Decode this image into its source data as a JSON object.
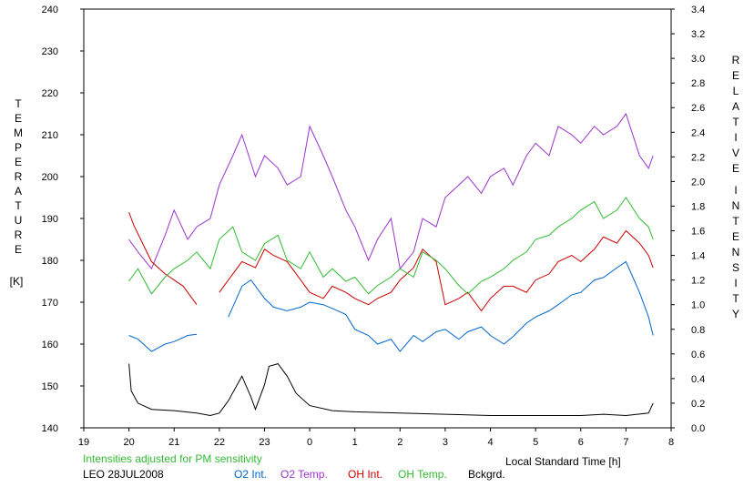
{
  "chart_data": {
    "type": "line",
    "xlabel": "Local Standard Time [h]",
    "x_ticks": [
      "19",
      "20",
      "21",
      "22",
      "23",
      "0",
      "1",
      "2",
      "3",
      "4",
      "5",
      "6",
      "7",
      "8"
    ],
    "xlim": [
      19,
      32
    ],
    "y_left": {
      "label_letters": [
        "T",
        "E",
        "M",
        "P",
        "E",
        "R",
        "A",
        "T",
        "U",
        "R",
        "E"
      ],
      "unit": "[K]",
      "ticks": [
        "140",
        "150",
        "160",
        "170",
        "180",
        "190",
        "200",
        "210",
        "220",
        "230",
        "240"
      ],
      "lim": [
        140,
        240
      ]
    },
    "y_right": {
      "label_word1": [
        "R",
        "E",
        "L",
        "A",
        "T",
        "I",
        "V",
        "E"
      ],
      "label_word2": [
        "I",
        "N",
        "T",
        "E",
        "N",
        "S",
        "I",
        "T",
        "Y"
      ],
      "ticks": [
        "0.0",
        "0.2",
        "0.4",
        "0.6",
        "0.8",
        "1.0",
        "1.2",
        "1.4",
        "1.6",
        "1.8",
        "2.0",
        "2.2",
        "2.4",
        "2.6",
        "2.8",
        "3.0",
        "3.2",
        "3.4"
      ],
      "lim": [
        0,
        3.4
      ]
    },
    "note": "Intensities adjusted for PM sensitivity",
    "station_date": "LEO 28JUL2008",
    "series": [
      {
        "name": "O2 Int.",
        "color": "#0066cc",
        "axis": "right",
        "x": [
          20.0,
          20.2,
          20.5,
          20.8,
          21.0,
          21.3,
          21.5,
          22.0,
          22.2,
          22.5,
          22.7,
          23.0,
          23.2,
          23.5,
          23.8,
          24.0,
          24.3,
          24.5,
          24.8,
          25.0,
          25.3,
          25.5,
          25.8,
          26.0,
          26.3,
          26.5,
          26.8,
          27.0,
          27.3,
          27.5,
          27.8,
          28.0,
          28.3,
          28.5,
          28.8,
          29.0,
          29.3,
          29.5,
          29.8,
          30.0,
          30.3,
          30.5,
          30.8,
          31.0,
          31.3,
          31.5,
          31.6
        ],
        "y": [
          0.75,
          0.72,
          0.62,
          0.68,
          0.7,
          0.75,
          0.76,
          null,
          0.9,
          1.15,
          1.2,
          1.05,
          0.98,
          0.95,
          0.98,
          1.02,
          1.0,
          0.97,
          0.92,
          0.8,
          0.75,
          0.68,
          0.72,
          0.62,
          0.75,
          0.7,
          0.78,
          0.8,
          0.72,
          0.78,
          0.82,
          0.75,
          0.68,
          0.74,
          0.85,
          0.9,
          0.95,
          1.0,
          1.08,
          1.1,
          1.2,
          1.22,
          1.3,
          1.35,
          1.1,
          0.9,
          0.75
        ]
      },
      {
        "name": "O2 Temp.",
        "color": "#9933cc",
        "axis": "left",
        "x": [
          20.0,
          20.2,
          20.5,
          20.8,
          21.0,
          21.3,
          21.5,
          21.8,
          22.0,
          22.3,
          22.5,
          22.8,
          23.0,
          23.3,
          23.5,
          23.8,
          24.0,
          24.3,
          24.5,
          24.8,
          25.0,
          25.3,
          25.5,
          25.8,
          26.0,
          26.3,
          26.5,
          26.8,
          27.0,
          27.3,
          27.5,
          27.8,
          28.0,
          28.3,
          28.5,
          28.8,
          29.0,
          29.3,
          29.5,
          29.8,
          30.0,
          30.3,
          30.5,
          30.8,
          31.0,
          31.3,
          31.5,
          31.6
        ],
        "y": [
          185,
          182,
          178,
          186,
          192,
          185,
          188,
          190,
          198,
          205,
          210,
          200,
          205,
          202,
          198,
          200,
          212,
          205,
          200,
          192,
          188,
          180,
          185,
          190,
          178,
          182,
          190,
          188,
          195,
          198,
          200,
          196,
          200,
          202,
          198,
          205,
          208,
          205,
          212,
          210,
          208,
          212,
          210,
          212,
          215,
          205,
          202,
          205
        ]
      },
      {
        "name": "OH Int.",
        "color": "#cc0000",
        "axis": "right",
        "x": [
          20.0,
          20.1,
          20.3,
          20.5,
          20.8,
          21.0,
          21.2,
          21.4,
          21.5,
          21.7,
          22.0,
          22.2,
          22.5,
          22.8,
          23.0,
          23.2,
          23.5,
          23.8,
          24.0,
          24.3,
          24.5,
          24.8,
          25.0,
          25.3,
          25.5,
          25.8,
          26.0,
          26.3,
          26.5,
          26.8,
          27.0,
          27.3,
          27.5,
          27.8,
          28.0,
          28.3,
          28.5,
          28.8,
          29.0,
          29.3,
          29.5,
          29.8,
          30.0,
          30.3,
          30.5,
          30.8,
          31.0,
          31.3,
          31.5,
          31.6
        ],
        "y": [
          1.75,
          1.65,
          1.5,
          1.35,
          1.25,
          1.2,
          1.15,
          1.05,
          1.0,
          null,
          1.1,
          1.2,
          1.35,
          1.3,
          1.45,
          1.4,
          1.35,
          1.2,
          1.1,
          1.05,
          1.15,
          1.1,
          1.05,
          1.0,
          1.05,
          1.1,
          1.2,
          1.3,
          1.45,
          1.35,
          1.0,
          1.05,
          1.1,
          0.95,
          1.05,
          1.15,
          1.15,
          1.1,
          1.2,
          1.25,
          1.35,
          1.4,
          1.35,
          1.45,
          1.55,
          1.5,
          1.6,
          1.5,
          1.4,
          1.3
        ]
      },
      {
        "name": "OH Temp.",
        "color": "#33bb33",
        "axis": "left",
        "x": [
          20.0,
          20.2,
          20.5,
          20.8,
          21.0,
          21.3,
          21.5,
          21.8,
          22.0,
          22.3,
          22.5,
          22.8,
          23.0,
          23.3,
          23.5,
          23.8,
          24.0,
          24.3,
          24.5,
          24.8,
          25.0,
          25.3,
          25.5,
          25.8,
          26.0,
          26.3,
          26.5,
          26.8,
          27.0,
          27.3,
          27.5,
          27.8,
          28.0,
          28.3,
          28.5,
          28.8,
          29.0,
          29.3,
          29.5,
          29.8,
          30.0,
          30.3,
          30.5,
          30.8,
          31.0,
          31.3,
          31.5,
          31.6
        ],
        "y": [
          175,
          178,
          172,
          176,
          178,
          180,
          182,
          178,
          185,
          188,
          182,
          180,
          184,
          186,
          180,
          178,
          182,
          176,
          178,
          175,
          176,
          172,
          174,
          176,
          178,
          176,
          182,
          180,
          178,
          174,
          172,
          175,
          176,
          178,
          180,
          182,
          185,
          186,
          188,
          190,
          192,
          194,
          190,
          192,
          195,
          190,
          188,
          185
        ]
      },
      {
        "name": "Bckgrd.",
        "color": "#000000",
        "axis": "right",
        "x": [
          20.0,
          20.05,
          20.2,
          20.5,
          21.0,
          21.5,
          21.8,
          22.0,
          22.2,
          22.5,
          22.7,
          22.8,
          23.0,
          23.1,
          23.3,
          23.5,
          23.7,
          24.0,
          24.5,
          25.0,
          26.0,
          27.0,
          28.0,
          29.0,
          30.0,
          30.5,
          31.0,
          31.5,
          31.6
        ],
        "y": [
          0.52,
          0.3,
          0.2,
          0.15,
          0.14,
          0.12,
          0.1,
          0.12,
          0.22,
          0.42,
          0.25,
          0.15,
          0.35,
          0.5,
          0.52,
          0.42,
          0.28,
          0.18,
          0.14,
          0.13,
          0.12,
          0.11,
          0.1,
          0.1,
          0.1,
          0.11,
          0.1,
          0.12,
          0.2
        ]
      }
    ]
  }
}
